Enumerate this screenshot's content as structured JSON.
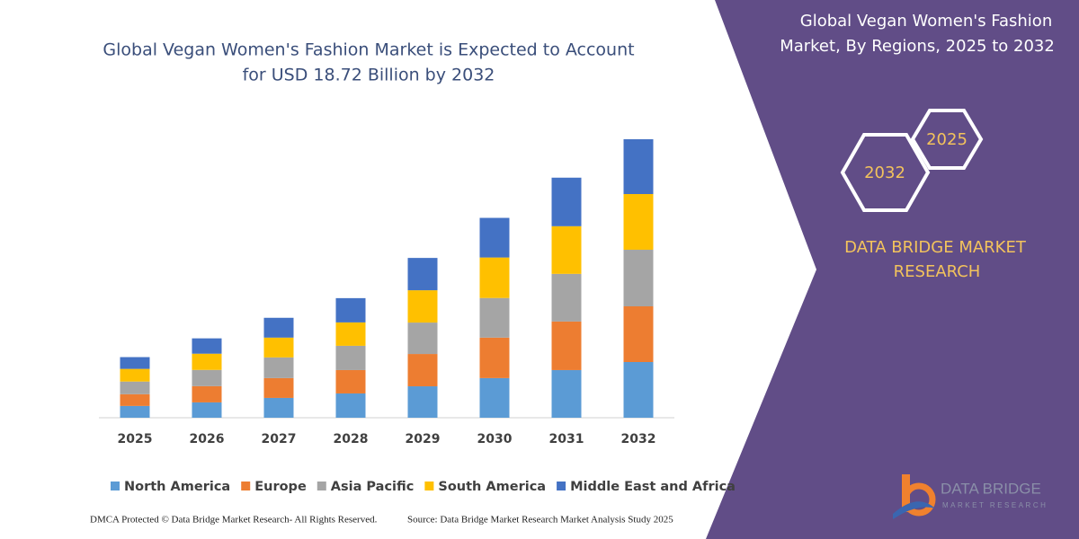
{
  "chart_data": {
    "type": "stacked-bar",
    "title": [
      "Global Vegan Women's Fashion Market is Expected to Account",
      "for USD 18.72 Billion by 2032"
    ],
    "categories": [
      "2025",
      "2026",
      "2027",
      "2028",
      "2029",
      "2030",
      "2031",
      "2032"
    ],
    "series": [
      {
        "name": "North America",
        "color": "#5b9bd5",
        "values": [
          0.79,
          1.03,
          1.33,
          1.63,
          2.11,
          2.66,
          3.2,
          3.74
        ]
      },
      {
        "name": "Europe",
        "color": "#ed7d31",
        "values": [
          0.79,
          1.09,
          1.33,
          1.57,
          2.17,
          2.72,
          3.26,
          3.74
        ]
      },
      {
        "name": "Asia Pacific",
        "color": "#a5a5a5",
        "values": [
          0.85,
          1.09,
          1.39,
          1.63,
          2.11,
          2.66,
          3.2,
          3.8
        ]
      },
      {
        "name": "South America",
        "color": "#ffc000",
        "values": [
          0.85,
          1.09,
          1.33,
          1.57,
          2.17,
          2.72,
          3.2,
          3.74
        ]
      },
      {
        "name": "Middle East and Africa",
        "color": "#4472c4",
        "values": [
          0.79,
          1.03,
          1.33,
          1.63,
          2.17,
          2.66,
          3.26,
          3.68
        ]
      }
    ],
    "legend": "bottom"
  },
  "panel": {
    "title": [
      "Global Vegan Women's Fashion",
      "Market, By Regions, 2025 to 2032"
    ],
    "hexagons": [
      "2025",
      "2032"
    ],
    "brand": [
      "DATA BRIDGE MARKET",
      "RESEARCH"
    ],
    "logo": [
      "DATA BRIDGE",
      "MARKET RESEARCH"
    ]
  },
  "footer": [
    "DMCA Protected © Data Bridge Market Research-  All Rights Reserved.",
    "Source: Data Bridge Market Research  Market Analysis Study 2025"
  ]
}
